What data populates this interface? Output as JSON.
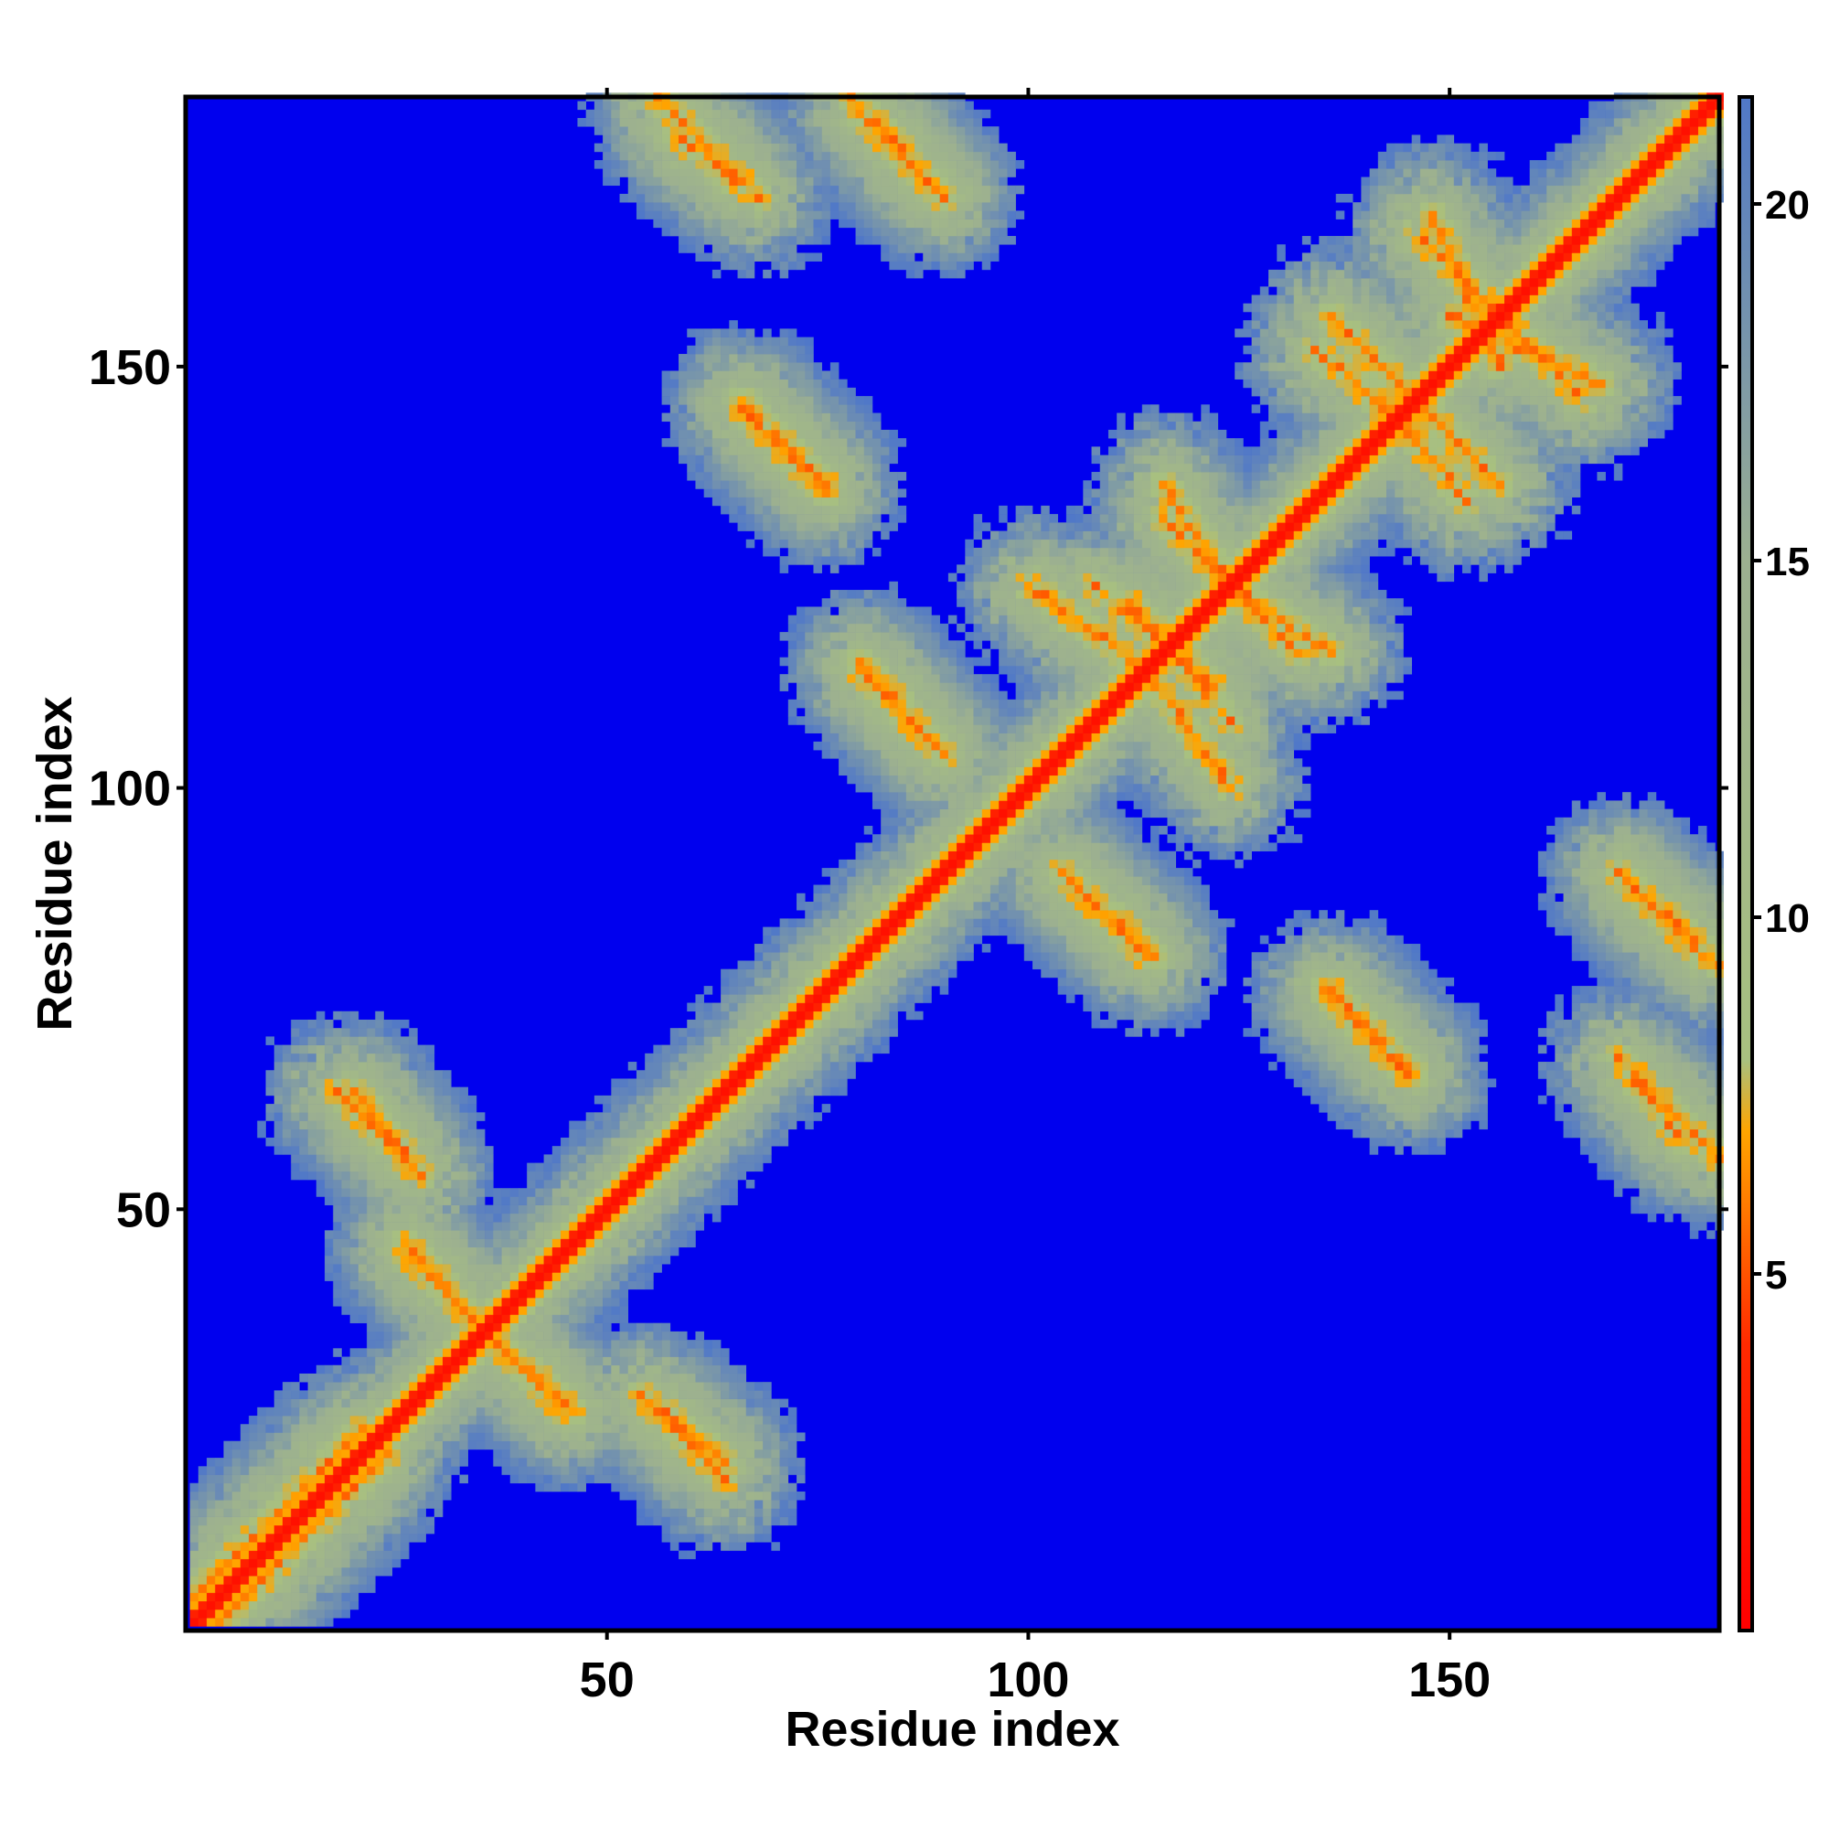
{
  "chart_data": {
    "type": "heatmap",
    "title": "",
    "xlabel": "Residue index",
    "ylabel": "Residue index",
    "xlim": [
      1,
      182
    ],
    "ylim": [
      1,
      182
    ],
    "n_residues": 182,
    "x_ticks": [
      50,
      100,
      150
    ],
    "y_ticks": [
      50,
      100,
      150
    ],
    "colorbar": {
      "ticks": [
        5,
        10,
        15,
        20
      ],
      "range": [
        0,
        21.5
      ],
      "stops": [
        {
          "value": 0,
          "color": "#ff0000"
        },
        {
          "value": 4,
          "color": "#ff2a00"
        },
        {
          "value": 7,
          "color": "#ffa500"
        },
        {
          "value": 8,
          "color": "#a8c080"
        },
        {
          "value": 15,
          "color": "#9cb090"
        },
        {
          "value": 21.5,
          "color": "#5078c8"
        }
      ]
    },
    "background_value": 30,
    "background_color": "#0000ee",
    "legend_position": "right",
    "grid": false,
    "contact_patterns": [
      {
        "kind": "diagonal",
        "description": "self-distance band along x = y"
      },
      {
        "kind": "parallel",
        "x": [
          4,
          24
        ],
        "y": [
          1,
          21
        ],
        "note": "N-terminal helix band"
      },
      {
        "kind": "antiparallel",
        "x": [
          56,
          66
        ],
        "y": [
          182,
          172
        ]
      },
      {
        "kind": "antiparallel",
        "x": [
          79,
          90
        ],
        "y": [
          182,
          170
        ]
      },
      {
        "kind": "antiparallel",
        "x": [
          66,
          76
        ],
        "y": [
          146,
          136
        ]
      },
      {
        "kind": "antiparallel",
        "x": [
          80,
          90
        ],
        "y": [
          114,
          104
        ]
      },
      {
        "kind": "antiparallel",
        "x": [
          104,
          115
        ],
        "y": [
          90,
          80
        ]
      },
      {
        "kind": "antiparallel",
        "x": [
          135,
          145
        ],
        "y": [
          76,
          66
        ]
      },
      {
        "kind": "antiparallel",
        "x": [
          170,
          180
        ],
        "y": [
          90,
          80
        ]
      },
      {
        "kind": "antiparallel",
        "x": [
          170,
          178
        ],
        "y": [
          68,
          58
        ]
      },
      {
        "kind": "antiparallel",
        "x": [
          146,
          158
        ],
        "y": [
          166,
          154
        ]
      },
      {
        "kind": "antiparallel",
        "x": [
          150,
          168
        ],
        "y": [
          156,
          148
        ]
      },
      {
        "kind": "antiparallel",
        "x": [
          142,
          152
        ],
        "y": [
          146,
          134
        ]
      },
      {
        "kind": "antiparallel",
        "x": [
          136,
          148
        ],
        "y": [
          156,
          144
        ]
      },
      {
        "kind": "antiparallel",
        "x": [
          108,
          122
        ],
        "y": [
          124,
          112
        ]
      },
      {
        "kind": "antiparallel",
        "x": [
          116,
          128
        ],
        "y": [
          132,
          120
        ]
      },
      {
        "kind": "antiparallel",
        "x": [
          114,
          124
        ],
        "y": [
          114,
          100
        ]
      },
      {
        "kind": "antiparallel",
        "x": [
          124,
          136
        ],
        "y": [
          124,
          116
        ]
      },
      {
        "kind": "antiparallel",
        "x": [
          18,
          26
        ],
        "y": [
          64,
          56
        ]
      },
      {
        "kind": "antiparallel",
        "x": [
          26,
          36
        ],
        "y": [
          45,
          35
        ]
      },
      {
        "kind": "antiparallel",
        "x": [
          35,
          46
        ],
        "y": [
          36,
          26
        ]
      },
      {
        "kind": "antiparallel",
        "x": [
          54,
          64
        ],
        "y": [
          28,
          20
        ]
      }
    ]
  }
}
